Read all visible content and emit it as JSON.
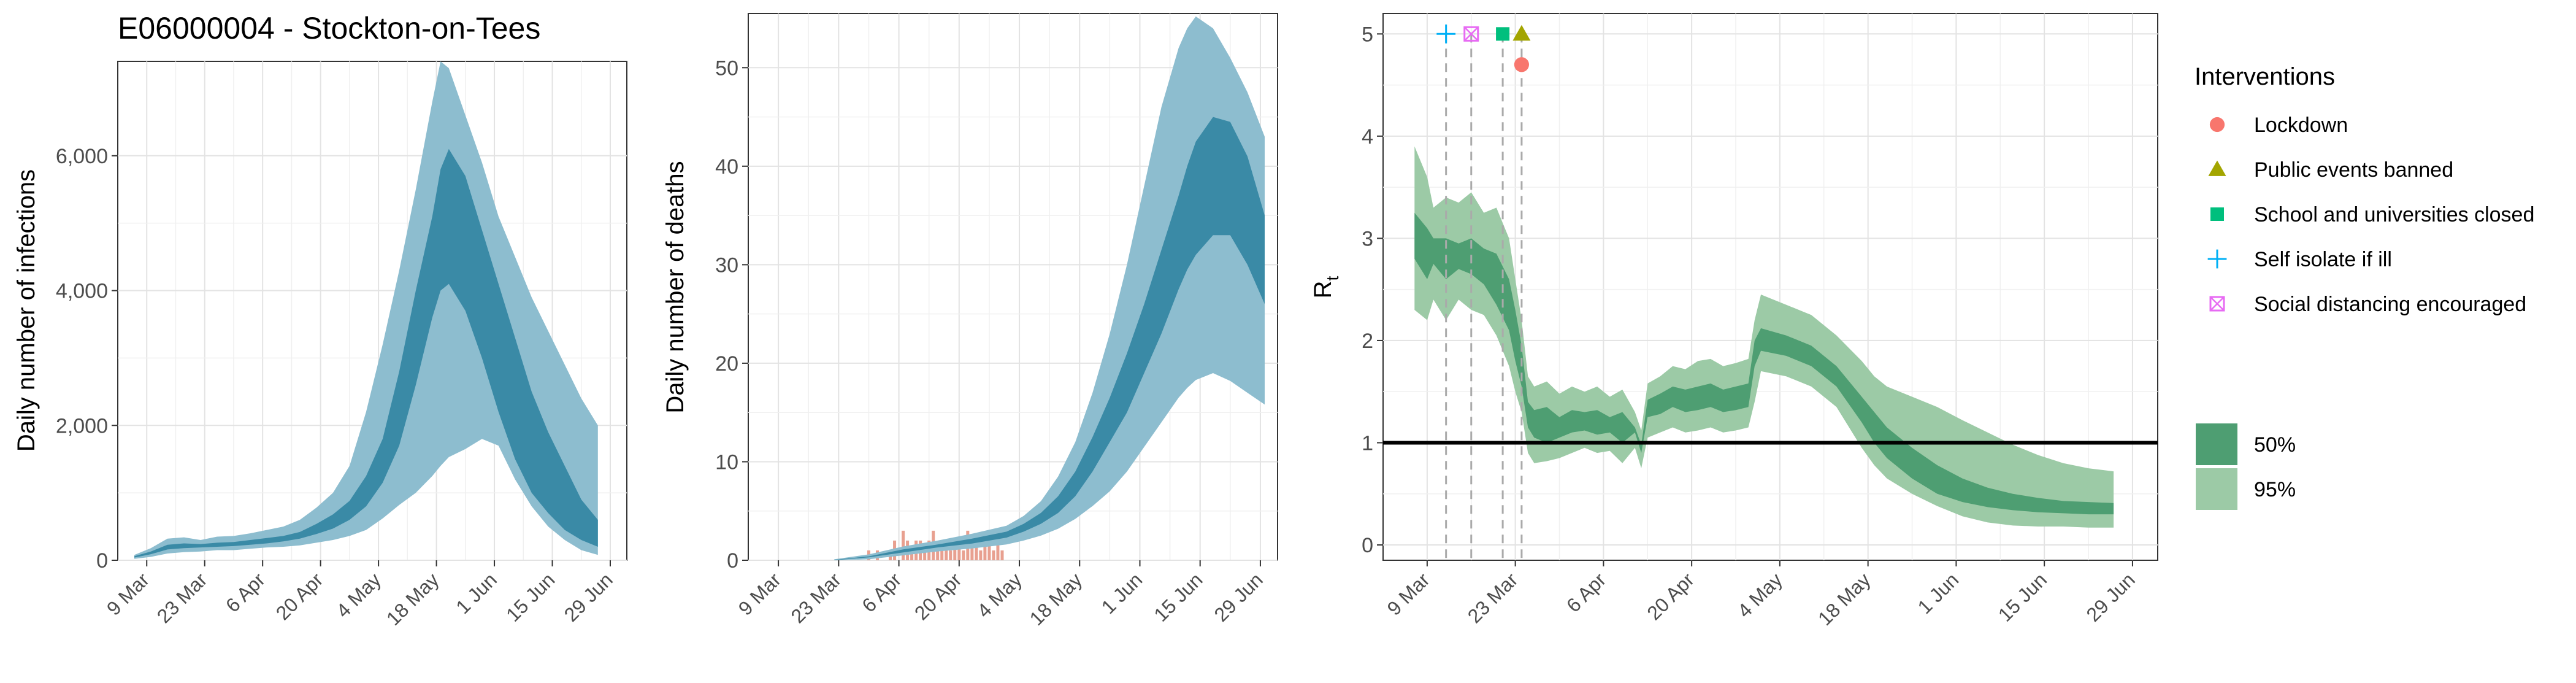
{
  "title": "E06000004 - Stockton-on-Tees",
  "colors": {
    "blue_50": "#3a8aa6",
    "blue_95": "#8dbdcf",
    "green_50": "#4e9e72",
    "green_95": "#9ccaa6",
    "death_bars": "#e8a090",
    "lockdown": "#F8766D",
    "public_events": "#A3A500",
    "schools": "#00BF7D",
    "self_isolate": "#00B0F6",
    "social_distancing": "#E76BF3"
  },
  "chart_data": [
    {
      "id": "infections",
      "type": "area",
      "title": "E06000004 - Stockton-on-Tees",
      "xlabel": "",
      "ylabel": "Daily number of infections",
      "x_tick_labels": [
        "9 Mar",
        "23 Mar",
        "6 Apr",
        "20 Apr",
        "4 May",
        "18 May",
        "1 Jun",
        "15 Jun",
        "29 Jun"
      ],
      "x_tick_days": [
        9,
        23,
        37,
        51,
        65,
        79,
        93,
        107,
        121
      ],
      "xlim": [
        2,
        125
      ],
      "y_tick_labels": [
        "0",
        "2,000",
        "4,000",
        "6,000"
      ],
      "y_tick_values": [
        0,
        2000,
        4000,
        6000
      ],
      "ylim": [
        0,
        7400
      ],
      "grid": true,
      "x_day_note": "days since 29 Feb 2020",
      "bands": {
        "x": [
          6,
          10,
          14,
          18,
          22,
          26,
          30,
          34,
          38,
          42,
          46,
          50,
          54,
          58,
          62,
          66,
          70,
          74,
          78,
          80,
          82,
          86,
          90,
          94,
          98,
          102,
          106,
          110,
          114,
          118
        ],
        "p95_lower": [
          20,
          50,
          100,
          120,
          130,
          150,
          150,
          170,
          190,
          200,
          220,
          260,
          300,
          360,
          450,
          620,
          820,
          1000,
          1250,
          1400,
          1530,
          1650,
          1800,
          1700,
          1200,
          800,
          500,
          300,
          150,
          80
        ],
        "p95_upper": [
          80,
          180,
          320,
          340,
          300,
          350,
          360,
          400,
          450,
          500,
          600,
          780,
          1000,
          1400,
          2200,
          3200,
          4300,
          5500,
          6800,
          7400,
          7300,
          6600,
          5900,
          5100,
          4500,
          3900,
          3400,
          2900,
          2400,
          2000
        ],
        "p50_lower": [
          40,
          90,
          160,
          180,
          190,
          200,
          210,
          230,
          250,
          280,
          320,
          390,
          470,
          600,
          800,
          1150,
          1700,
          2600,
          3600,
          4000,
          4100,
          3700,
          3000,
          2200,
          1500,
          1000,
          700,
          450,
          300,
          200
        ],
        "p50_upper": [
          60,
          130,
          230,
          250,
          240,
          260,
          270,
          300,
          330,
          360,
          420,
          540,
          680,
          880,
          1250,
          1800,
          2800,
          4000,
          5100,
          5800,
          6100,
          5700,
          4900,
          4100,
          3300,
          2500,
          1900,
          1400,
          900,
          600
        ]
      }
    },
    {
      "id": "deaths",
      "type": "area",
      "title": "",
      "xlabel": "",
      "ylabel": "Daily number of deaths",
      "x_tick_labels": [
        "9 Mar",
        "23 Mar",
        "6 Apr",
        "20 Apr",
        "4 May",
        "18 May",
        "1 Jun",
        "15 Jun",
        "29 Jun"
      ],
      "x_tick_days": [
        9,
        23,
        37,
        51,
        65,
        79,
        93,
        107,
        121
      ],
      "xlim": [
        2,
        125
      ],
      "y_tick_labels": [
        "0",
        "10",
        "20",
        "30",
        "40",
        "50"
      ],
      "y_tick_values": [
        0,
        10,
        20,
        30,
        40,
        50
      ],
      "ylim": [
        0,
        55.5
      ],
      "grid": true,
      "observed_days": [
        30,
        32,
        35,
        36,
        38,
        39,
        40,
        41,
        42,
        43,
        44,
        45,
        46,
        47,
        48,
        49,
        50,
        51,
        52,
        53,
        54,
        55,
        56,
        57,
        58,
        59,
        60,
        61
      ],
      "observed_deaths": [
        1,
        1,
        1,
        2,
        3,
        2,
        1,
        2,
        2,
        1,
        2,
        3,
        1,
        2,
        2,
        1,
        2,
        2,
        1,
        3,
        2,
        2,
        1,
        2,
        2,
        1,
        2,
        1
      ],
      "bands": {
        "x": [
          22,
          30,
          38,
          46,
          54,
          62,
          66,
          70,
          74,
          78,
          82,
          86,
          90,
          94,
          98,
          102,
          104,
          106,
          110,
          114,
          118,
          122
        ],
        "p95_lower": [
          0,
          0.1,
          0.5,
          0.9,
          1.2,
          1.6,
          2.0,
          2.5,
          3.2,
          4.2,
          5.5,
          7.0,
          9.0,
          11.5,
          14.0,
          16.5,
          17.5,
          18.3,
          19.0,
          18.2,
          17.0,
          15.8
        ],
        "p95_upper": [
          0.1,
          0.6,
          1.4,
          2.0,
          2.7,
          3.5,
          4.5,
          6.0,
          8.5,
          12.0,
          17.0,
          23.0,
          30.0,
          38.0,
          46.0,
          52.0,
          54.0,
          55.2,
          54.0,
          51.0,
          47.5,
          43.0
        ],
        "p50_lower": [
          0,
          0.3,
          0.8,
          1.3,
          1.7,
          2.3,
          2.9,
          3.7,
          4.8,
          6.5,
          9.0,
          12.0,
          15.0,
          19.0,
          23.0,
          27.5,
          29.5,
          31.0,
          33.0,
          33.0,
          30.0,
          26.0
        ],
        "p50_upper": [
          0.05,
          0.4,
          1.1,
          1.6,
          2.2,
          2.9,
          3.7,
          4.8,
          6.5,
          9.0,
          12.5,
          16.5,
          21.0,
          26.0,
          31.5,
          37.0,
          40.0,
          42.5,
          45.0,
          44.5,
          41.0,
          35.0
        ]
      }
    },
    {
      "id": "rt",
      "type": "area",
      "title": "",
      "xlabel": "",
      "ylabel": "R",
      "ylabel_subscript": "t",
      "x_tick_labels": [
        "9 Mar",
        "23 Mar",
        "6 Apr",
        "20 Apr",
        "4 May",
        "18 May",
        "1 Jun",
        "15 Jun",
        "29 Jun"
      ],
      "x_tick_days": [
        9,
        23,
        37,
        51,
        65,
        79,
        93,
        107,
        121
      ],
      "xlim": [
        2,
        125
      ],
      "y_tick_labels": [
        "0",
        "1",
        "2",
        "3",
        "4",
        "5"
      ],
      "y_tick_values": [
        0,
        1,
        2,
        3,
        4,
        5
      ],
      "ylim": [
        -0.15,
        5.2
      ],
      "grid": true,
      "reference_line": 1,
      "bands": {
        "x": [
          7,
          9,
          10,
          12,
          14,
          16,
          18,
          20,
          22,
          23,
          24,
          25,
          26,
          28,
          30,
          32,
          34,
          36,
          38,
          40,
          42,
          43,
          44,
          46,
          48,
          50,
          52,
          54,
          56,
          58,
          60,
          61,
          62,
          66,
          70,
          74,
          78,
          80,
          82,
          86,
          90,
          94,
          98,
          102,
          106,
          110,
          114,
          118
        ],
        "p95_lower": [
          2.3,
          2.2,
          2.4,
          2.2,
          2.4,
          2.3,
          2.25,
          2.05,
          1.75,
          1.5,
          1.3,
          0.9,
          0.8,
          0.82,
          0.85,
          0.9,
          0.95,
          0.9,
          0.92,
          0.8,
          0.95,
          0.75,
          1.05,
          1.1,
          1.15,
          1.1,
          1.12,
          1.15,
          1.1,
          1.12,
          1.15,
          1.4,
          1.7,
          1.65,
          1.55,
          1.35,
          0.95,
          0.78,
          0.65,
          0.5,
          0.38,
          0.28,
          0.22,
          0.19,
          0.18,
          0.18,
          0.17,
          0.17
        ],
        "p95_upper": [
          3.9,
          3.6,
          3.3,
          3.4,
          3.35,
          3.45,
          3.25,
          3.3,
          3.0,
          2.6,
          2.2,
          1.65,
          1.55,
          1.6,
          1.48,
          1.55,
          1.5,
          1.55,
          1.45,
          1.52,
          1.3,
          1.12,
          1.58,
          1.65,
          1.75,
          1.72,
          1.8,
          1.82,
          1.75,
          1.78,
          1.82,
          2.2,
          2.45,
          2.35,
          2.25,
          2.05,
          1.8,
          1.65,
          1.55,
          1.45,
          1.35,
          1.22,
          1.1,
          0.98,
          0.88,
          0.8,
          0.75,
          0.72
        ],
        "p50_lower": [
          2.8,
          2.6,
          2.75,
          2.6,
          2.7,
          2.65,
          2.55,
          2.35,
          2.1,
          1.8,
          1.55,
          1.15,
          1.05,
          1.0,
          1.05,
          1.1,
          1.12,
          1.08,
          1.1,
          1.0,
          1.1,
          0.9,
          1.25,
          1.28,
          1.35,
          1.3,
          1.32,
          1.35,
          1.3,
          1.32,
          1.35,
          1.75,
          1.9,
          1.85,
          1.75,
          1.55,
          1.2,
          1.0,
          0.85,
          0.65,
          0.5,
          0.42,
          0.37,
          0.34,
          0.32,
          0.31,
          0.3,
          0.3
        ],
        "p50_upper": [
          3.25,
          3.1,
          3.0,
          3.0,
          2.95,
          3.0,
          2.9,
          2.85,
          2.6,
          2.3,
          1.95,
          1.4,
          1.32,
          1.35,
          1.25,
          1.32,
          1.3,
          1.32,
          1.25,
          1.3,
          1.15,
          0.98,
          1.42,
          1.48,
          1.55,
          1.52,
          1.55,
          1.58,
          1.52,
          1.55,
          1.58,
          2.0,
          2.12,
          2.05,
          1.95,
          1.75,
          1.45,
          1.3,
          1.15,
          0.95,
          0.78,
          0.65,
          0.56,
          0.5,
          0.46,
          0.43,
          0.42,
          0.41
        ]
      },
      "interventions": [
        {
          "name": "Self isolate if ill",
          "day": 12,
          "marker": "plus",
          "y": 5,
          "color_key": "self_isolate"
        },
        {
          "name": "Social distancing encouraged",
          "day": 16,
          "marker": "boxcross",
          "y": 5,
          "color_key": "social_distancing"
        },
        {
          "name": "School and universities closed",
          "day": 21,
          "marker": "square",
          "y": 5,
          "color_key": "schools"
        },
        {
          "name": "Public events banned",
          "day": 24,
          "marker": "triangle",
          "y": 5,
          "color_key": "public_events"
        },
        {
          "name": "Lockdown",
          "day": 24,
          "marker": "circle",
          "y": 4.7,
          "color_key": "lockdown"
        }
      ]
    }
  ],
  "legend": {
    "title": "Interventions",
    "items": [
      {
        "label": "Lockdown",
        "marker": "circle",
        "color_key": "lockdown"
      },
      {
        "label": "Public events banned",
        "marker": "triangle",
        "color_key": "public_events"
      },
      {
        "label": "School and universities closed",
        "marker": "square",
        "color_key": "schools"
      },
      {
        "label": "Self isolate if ill",
        "marker": "plus",
        "color_key": "self_isolate"
      },
      {
        "label": "Social distancing encouraged",
        "marker": "boxcross",
        "color_key": "social_distancing"
      }
    ],
    "bands": [
      {
        "label": "50%",
        "color_key": "green_50"
      },
      {
        "label": "95%",
        "color_key": "green_95"
      }
    ]
  }
}
